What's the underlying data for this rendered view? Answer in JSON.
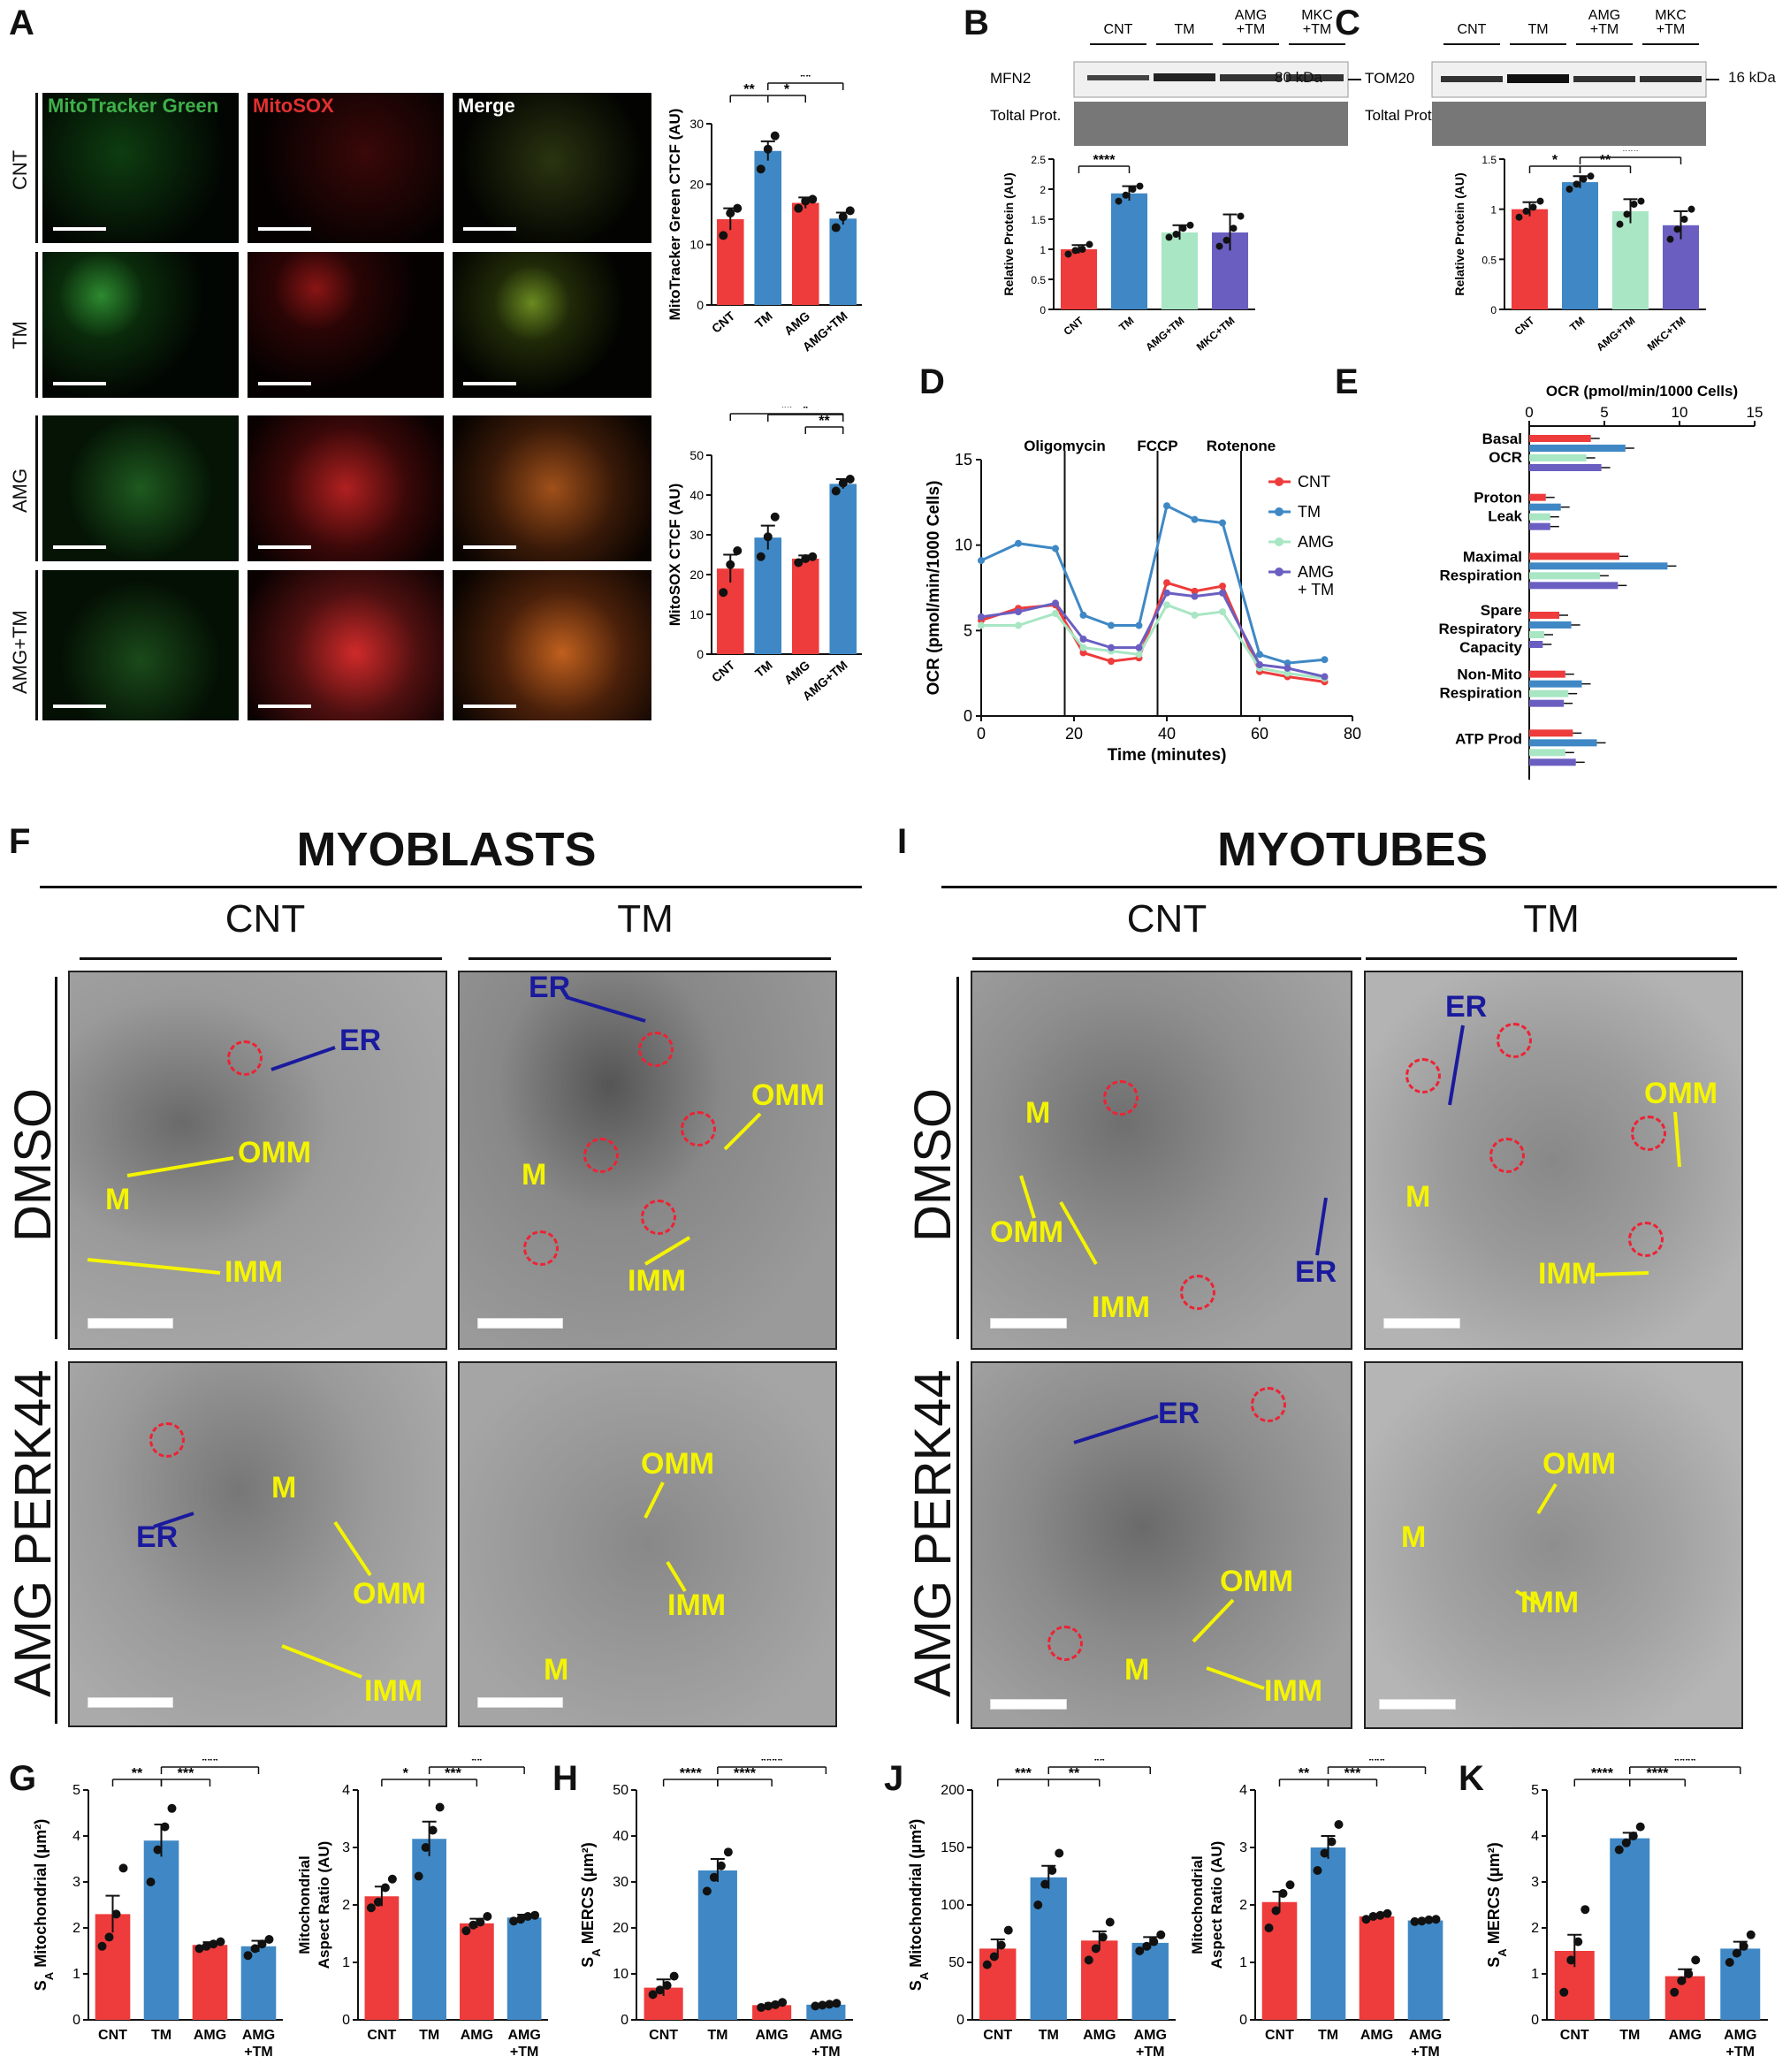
{
  "panel_letters": {
    "A": "A",
    "B": "B",
    "C": "C",
    "D": "D",
    "E": "E",
    "F": "F",
    "G": "G",
    "H": "H",
    "I": "I",
    "J": "J",
    "K": "K"
  },
  "panelA": {
    "channels": [
      "MitoTracker Green",
      "MitoSOX",
      "Merge"
    ],
    "rows": [
      "CNT",
      "TM",
      "AMG",
      "AMG+TM"
    ],
    "colors": {
      "green": "#3fb04a",
      "red": "#e33030",
      "white": "#ffffff"
    }
  },
  "panelB": {
    "lanes": [
      "CNT",
      "TM",
      "AMG\n+TM",
      "MKC\n+TM"
    ],
    "protein": "MFN2",
    "kda": "80 kDa",
    "total": "Toltal Prot."
  },
  "panelC": {
    "lanes": [
      "CNT",
      "TM",
      "AMG\n+TM",
      "MKC\n+TM"
    ],
    "protein": "TOM20",
    "kda": "16 kDa",
    "total": "Toltal Prot."
  },
  "panelF": {
    "title": "MYOBLASTS",
    "cols": [
      "CNT",
      "TM"
    ],
    "rows": [
      "DMSO",
      "AMG PERK44"
    ],
    "labels": {
      "er": "ER",
      "omm": "OMM",
      "imm": "IMM",
      "m": "M"
    }
  },
  "panelI": {
    "title": "MYOTUBES",
    "cols": [
      "CNT",
      "TM"
    ],
    "rows": [
      "DMSO",
      "AMG PERK44"
    ]
  },
  "colors": {
    "cnt": "#ee3b3b",
    "tm": "#3f88c5",
    "amg": "#a8e6c4",
    "amgtm": "#6a5fc1",
    "em_bg": "#8a8a8a"
  },
  "chart_data": [
    {
      "id": "A1",
      "type": "bar",
      "categories": [
        "CNT",
        "TM",
        "AMG",
        "AMG+TM"
      ],
      "values": [
        14.2,
        25.5,
        16.9,
        14.3
      ],
      "errors": [
        1.8,
        1.6,
        0.9,
        1.0
      ],
      "points": [
        [
          11.5,
          15.2,
          16.0
        ],
        [
          22.5,
          25.8,
          28.0
        ],
        [
          16.0,
          17.2,
          17.5
        ],
        [
          12.8,
          14.6,
          15.6
        ]
      ],
      "ylabel": "MitoTracker Green CTCF (AU)",
      "ylim": [
        0,
        30
      ],
      "yticks": [
        0,
        10,
        20,
        30
      ],
      "sig": [
        {
          "a": 0,
          "b": 1,
          "t": "**",
          "lvl": 0
        },
        {
          "a": 1,
          "b": 2,
          "t": "*",
          "lvl": 0
        },
        {
          "a": 1,
          "b": 3,
          "t": "**",
          "lvl": 1
        }
      ]
    },
    {
      "id": "A2",
      "type": "bar",
      "categories": [
        "CNT",
        "TM",
        "AMG",
        "AMG+TM"
      ],
      "values": [
        21.5,
        29.3,
        24.0,
        42.8
      ],
      "errors": [
        3.5,
        3.0,
        0.8,
        1.2
      ],
      "points": [
        [
          15.5,
          22.5,
          26.0
        ],
        [
          24.5,
          29.5,
          34.5
        ],
        [
          23.0,
          24.0,
          24.5
        ],
        [
          41.0,
          43.0,
          44.0
        ]
      ],
      "ylabel": "MitoSOX CTCF (AU)",
      "ylim": [
        0,
        50
      ],
      "yticks": [
        0,
        10,
        20,
        30,
        40,
        50
      ],
      "sig": [
        {
          "a": 2,
          "b": 3,
          "t": "**",
          "lvl": 0
        },
        {
          "a": 1,
          "b": 3,
          "t": "*",
          "lvl": 1
        },
        {
          "a": 0,
          "b": 3,
          "t": "**",
          "lvl": 2
        }
      ]
    },
    {
      "id": "B",
      "type": "bar",
      "categories": [
        "CNT",
        "TM",
        "AMG+TM",
        "MKC+TM"
      ],
      "values": [
        1.0,
        1.93,
        1.28,
        1.28
      ],
      "errors": [
        0.07,
        0.12,
        0.12,
        0.3
      ],
      "points": [
        [
          0.92,
          0.98,
          1.0,
          1.08
        ],
        [
          1.8,
          1.9,
          2.0,
          2.05
        ],
        [
          1.2,
          1.25,
          1.35,
          1.4
        ],
        [
          1.05,
          1.15,
          1.35,
          1.55
        ]
      ],
      "ylabel": "Relative Protein (AU)",
      "ylim": [
        0,
        2.5
      ],
      "yticks": [
        0.0,
        0.5,
        1.0,
        1.5,
        2.0,
        2.5
      ],
      "sig": [
        {
          "a": 0,
          "b": 1,
          "t": "****",
          "lvl": 0
        }
      ]
    },
    {
      "id": "C",
      "type": "bar",
      "categories": [
        "CNT",
        "TM",
        "AMG+TM",
        "MKC+TM"
      ],
      "values": [
        1.0,
        1.27,
        0.98,
        0.84
      ],
      "errors": [
        0.07,
        0.06,
        0.12,
        0.14
      ],
      "points": [
        [
          0.92,
          0.98,
          1.02,
          1.08
        ],
        [
          1.2,
          1.25,
          1.3,
          1.33
        ],
        [
          0.85,
          0.95,
          1.05,
          1.08
        ],
        [
          0.7,
          0.8,
          0.9,
          1.0
        ]
      ],
      "ylabel": "Relative Protein (AU)",
      "ylim": [
        0,
        1.5
      ],
      "yticks": [
        0.0,
        0.5,
        1.0,
        1.5
      ],
      "sig": [
        {
          "a": 0,
          "b": 1,
          "t": "*",
          "lvl": 0
        },
        {
          "a": 1,
          "b": 2,
          "t": "**",
          "lvl": 0
        },
        {
          "a": 1,
          "b": 3,
          "t": "***",
          "lvl": 1
        }
      ]
    },
    {
      "id": "D",
      "type": "line",
      "xlabel": "Time (minutes)",
      "ylabel": "OCR (pmol/min/1000 Cells)",
      "xlim": [
        0,
        80
      ],
      "ylim": [
        0,
        15
      ],
      "xticks": [
        0,
        20,
        40,
        60,
        80
      ],
      "yticks": [
        0,
        5,
        10,
        15
      ],
      "x": [
        0,
        8,
        16,
        22,
        28,
        34,
        40,
        46,
        52,
        60,
        66,
        74
      ],
      "injections": [
        {
          "x": 18,
          "label": "Oligomycin"
        },
        {
          "x": 38,
          "label": "FCCP"
        },
        {
          "x": 56,
          "label": "Rotenone"
        }
      ],
      "series": [
        {
          "name": "CNT",
          "values": [
            5.6,
            6.3,
            6.5,
            3.7,
            3.2,
            3.4,
            7.8,
            7.3,
            7.6,
            2.6,
            2.3,
            2.0
          ]
        },
        {
          "name": "TM",
          "values": [
            9.1,
            10.1,
            9.8,
            5.9,
            5.3,
            5.3,
            12.3,
            11.5,
            11.3,
            3.6,
            3.1,
            3.3
          ]
        },
        {
          "name": "AMG",
          "values": [
            5.3,
            5.3,
            6.0,
            4.0,
            3.8,
            3.6,
            6.5,
            5.9,
            6.1,
            2.8,
            2.5,
            2.2
          ]
        },
        {
          "name": "AMG\n+ TM",
          "values": [
            5.8,
            6.1,
            6.6,
            4.5,
            4.0,
            4.0,
            7.2,
            7.0,
            7.2,
            3.0,
            2.8,
            2.3
          ]
        }
      ]
    },
    {
      "id": "E",
      "type": "bar",
      "orientation": "horizontal",
      "xlabel": "OCR (pmol/min/1000 Cells)",
      "xlim": [
        0,
        15
      ],
      "xticks": [
        0,
        5,
        10,
        15
      ],
      "groups": [
        "Basal\nOCR",
        "Proton\nLeak",
        "Maximal\nRespiration",
        "Spare\nRespiratory\nCapacity",
        "Non-Mito\nRespiration",
        "ATP Prod"
      ],
      "series": [
        {
          "name": "CNT",
          "values": [
            4.1,
            1.1,
            6.0,
            2.0,
            2.4,
            2.9
          ]
        },
        {
          "name": "TM",
          "values": [
            6.4,
            2.1,
            9.2,
            2.8,
            3.5,
            4.5
          ]
        },
        {
          "name": "AMG",
          "values": [
            3.8,
            1.4,
            4.7,
            1.0,
            2.6,
            2.4
          ]
        },
        {
          "name": "AMG+TM",
          "values": [
            4.8,
            1.4,
            5.9,
            0.9,
            2.3,
            3.1
          ]
        }
      ]
    },
    {
      "id": "G1",
      "type": "bar",
      "categories": [
        "CNT",
        "TM",
        "AMG",
        "AMG\n+TM"
      ],
      "values": [
        2.3,
        3.9,
        1.63,
        1.6
      ],
      "errors": [
        0.4,
        0.35,
        0.06,
        0.12
      ],
      "points": [
        [
          1.6,
          1.8,
          2.3,
          3.3
        ],
        [
          3.0,
          3.7,
          4.2,
          4.6
        ],
        [
          1.55,
          1.6,
          1.65,
          1.7
        ],
        [
          1.4,
          1.55,
          1.65,
          1.75
        ]
      ],
      "ylabel": "SA Mitochondrial (μm²)",
      "ylim": [
        0,
        5
      ],
      "yticks": [
        0,
        1,
        2,
        3,
        4,
        5
      ],
      "sig": [
        {
          "a": 0,
          "b": 1,
          "t": "**",
          "lvl": 0
        },
        {
          "a": 1,
          "b": 2,
          "t": "***",
          "lvl": 0
        },
        {
          "a": 1,
          "b": 3,
          "t": "***",
          "lvl": 1
        }
      ]
    },
    {
      "id": "G2",
      "type": "bar",
      "categories": [
        "CNT",
        "TM",
        "AMG",
        "AMG\n+TM"
      ],
      "values": [
        2.15,
        3.15,
        1.68,
        1.78
      ],
      "errors": [
        0.17,
        0.3,
        0.08,
        0.05
      ],
      "points": [
        [
          1.95,
          2.05,
          2.3,
          2.45
        ],
        [
          2.5,
          3.0,
          3.3,
          3.7
        ],
        [
          1.55,
          1.65,
          1.7,
          1.8
        ],
        [
          1.72,
          1.75,
          1.8,
          1.82
        ]
      ],
      "ylabel": "Mitochondrial Aspect Ratio (AU)",
      "ylim": [
        0,
        4
      ],
      "yticks": [
        0,
        1,
        2,
        3,
        4
      ],
      "sig": [
        {
          "a": 0,
          "b": 1,
          "t": "*",
          "lvl": 0
        },
        {
          "a": 1,
          "b": 2,
          "t": "***",
          "lvl": 0
        },
        {
          "a": 1,
          "b": 3,
          "t": "**",
          "lvl": 1
        }
      ]
    },
    {
      "id": "H",
      "type": "bar",
      "categories": [
        "CNT",
        "TM",
        "AMG",
        "AMG\n+TM"
      ],
      "values": [
        7.0,
        32.5,
        3.2,
        3.3
      ],
      "errors": [
        1.8,
        2.5,
        0.4,
        0.3
      ],
      "points": [
        [
          5.5,
          6.5,
          7.5,
          9.5
        ],
        [
          28,
          31,
          33.5,
          36.5
        ],
        [
          2.7,
          3.0,
          3.3,
          3.8
        ],
        [
          3.0,
          3.2,
          3.4,
          3.6
        ]
      ],
      "ylabel": "SA MERCS (μm²)",
      "ylim": [
        0,
        50
      ],
      "yticks": [
        0,
        10,
        20,
        30,
        40,
        50
      ],
      "sig": [
        {
          "a": 0,
          "b": 1,
          "t": "****",
          "lvl": 0
        },
        {
          "a": 1,
          "b": 2,
          "t": "****",
          "lvl": 0
        },
        {
          "a": 1,
          "b": 3,
          "t": "****",
          "lvl": 1
        }
      ]
    },
    {
      "id": "J1",
      "type": "bar",
      "categories": [
        "CNT",
        "TM",
        "AMG",
        "AMG\n+TM"
      ],
      "values": [
        62,
        124,
        69,
        67
      ],
      "errors": [
        8,
        10,
        8,
        5
      ],
      "points": [
        [
          48,
          55,
          65,
          78
        ],
        [
          100,
          118,
          130,
          145
        ],
        [
          52,
          62,
          72,
          85
        ],
        [
          60,
          64,
          68,
          74
        ]
      ],
      "ylabel": "SA Mitochondrial (μm²)",
      "ylim": [
        0,
        200
      ],
      "yticks": [
        0,
        50,
        100,
        150,
        200
      ],
      "sig": [
        {
          "a": 0,
          "b": 1,
          "t": "***",
          "lvl": 0
        },
        {
          "a": 1,
          "b": 2,
          "t": "**",
          "lvl": 0
        },
        {
          "a": 1,
          "b": 3,
          "t": "**",
          "lvl": 1
        }
      ]
    },
    {
      "id": "J2",
      "type": "bar",
      "categories": [
        "CNT",
        "TM",
        "AMG",
        "AMG\n+TM"
      ],
      "values": [
        2.05,
        3.0,
        1.8,
        1.73
      ],
      "errors": [
        0.18,
        0.2,
        0.04,
        0.02
      ],
      "points": [
        [
          1.6,
          1.9,
          2.2,
          2.35
        ],
        [
          2.6,
          2.9,
          3.1,
          3.4
        ],
        [
          1.75,
          1.8,
          1.82,
          1.85
        ],
        [
          1.71,
          1.72,
          1.74,
          1.75
        ]
      ],
      "ylabel": "Mitochondrial Aspect Ratio (AU)",
      "ylim": [
        0,
        4
      ],
      "yticks": [
        0,
        1,
        2,
        3,
        4
      ],
      "sig": [
        {
          "a": 0,
          "b": 1,
          "t": "**",
          "lvl": 0
        },
        {
          "a": 1,
          "b": 2,
          "t": "***",
          "lvl": 0
        },
        {
          "a": 1,
          "b": 3,
          "t": "***",
          "lvl": 1
        }
      ]
    },
    {
      "id": "K",
      "type": "bar",
      "categories": [
        "CNT",
        "TM",
        "AMG",
        "AMG\n+TM"
      ],
      "values": [
        1.5,
        3.95,
        0.95,
        1.55
      ],
      "errors": [
        0.35,
        0.12,
        0.15,
        0.15
      ],
      "points": [
        [
          0.6,
          1.3,
          1.7,
          2.4
        ],
        [
          3.7,
          3.85,
          4.0,
          4.2
        ],
        [
          0.6,
          0.85,
          1.0,
          1.3
        ],
        [
          1.25,
          1.45,
          1.6,
          1.85
        ]
      ],
      "ylabel": "SA MERCS (μm²)",
      "ylim": [
        0,
        5
      ],
      "yticks": [
        0,
        1,
        2,
        3,
        4,
        5
      ],
      "sig": [
        {
          "a": 0,
          "b": 1,
          "t": "****",
          "lvl": 0
        },
        {
          "a": 1,
          "b": 2,
          "t": "****",
          "lvl": 0
        },
        {
          "a": 1,
          "b": 3,
          "t": "****",
          "lvl": 1
        }
      ]
    }
  ]
}
